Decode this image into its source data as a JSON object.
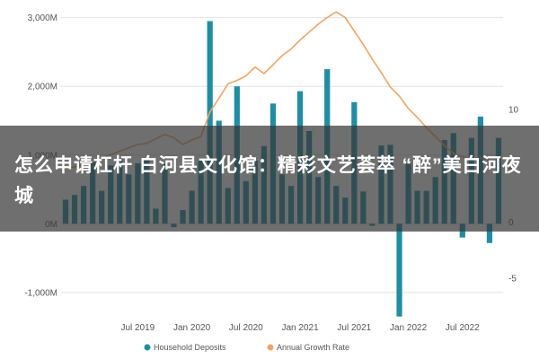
{
  "headline": "怎么申请杠杆 白河县文化馆：精彩文艺荟萃 “醉”美白河夜城",
  "colors": {
    "bars": "#1f8ea3",
    "line": "#f4a460",
    "grid": "#e2e2e2",
    "axis_text": "#555555",
    "overlay": "#373737"
  },
  "chart_data": {
    "type": "bar",
    "title": "",
    "xlabel": "",
    "ylabel": "",
    "ylabel_right": "",
    "grid": true,
    "legend_position": "bottom-left",
    "left_ticks": [
      "3,000M",
      "2,000M",
      "1,000M",
      "0M",
      "-1,000M"
    ],
    "left_tick_values": [
      3000,
      2000,
      1000,
      0,
      -1000
    ],
    "right_ticks": [
      "10",
      "5",
      "0",
      "-5"
    ],
    "right_tick_values": [
      10,
      5,
      0,
      -5
    ],
    "ylim": [
      -1250,
      3100
    ],
    "ylim_right": [
      -7.8,
      18.8
    ],
    "x_ticks": [
      "Jul 2019",
      "Jan 2020",
      "Jul 2020",
      "Jan 2021",
      "Jul 2021",
      "Jan 2022",
      "Jul 2022"
    ],
    "x_tick_positions": [
      8,
      14,
      20,
      26,
      32,
      38,
      44
    ],
    "series": [
      {
        "name": "Household Deposits",
        "kind": "bar",
        "axis": "left",
        "values": [
          350,
          420,
          550,
          900,
          480,
          850,
          950,
          720,
          880,
          950,
          220,
          880,
          -50,
          200,
          480,
          950,
          2950,
          1500,
          520,
          2000,
          620,
          920,
          1130,
          1750,
          720,
          550,
          1930,
          1350,
          680,
          2250,
          550,
          380,
          1770,
          470,
          -30,
          1140,
          1150,
          -1350,
          880,
          480,
          480,
          680,
          1220,
          1320,
          -200,
          1250,
          1560,
          -280,
          1250
        ]
      },
      {
        "name": "Annual Growth Rate",
        "kind": "line",
        "axis": "right",
        "values": [
          4.8,
          4.9,
          5.1,
          5.3,
          5.6,
          6.0,
          6.3,
          6.6,
          6.9,
          7.0,
          7.4,
          7.8,
          7.5,
          6.9,
          7.3,
          7.6,
          9.8,
          11.0,
          12.3,
          12.6,
          13.0,
          13.8,
          13.2,
          14.0,
          14.8,
          15.4,
          16.2,
          16.9,
          17.6,
          18.2,
          18.7,
          18.2,
          17.0,
          15.8,
          14.5,
          13.3,
          12.0,
          11.2,
          10.1,
          9.3,
          8.4,
          7.6,
          6.8,
          6.1,
          5.8,
          5.6,
          5.7,
          5.5,
          5.5
        ]
      }
    ]
  }
}
